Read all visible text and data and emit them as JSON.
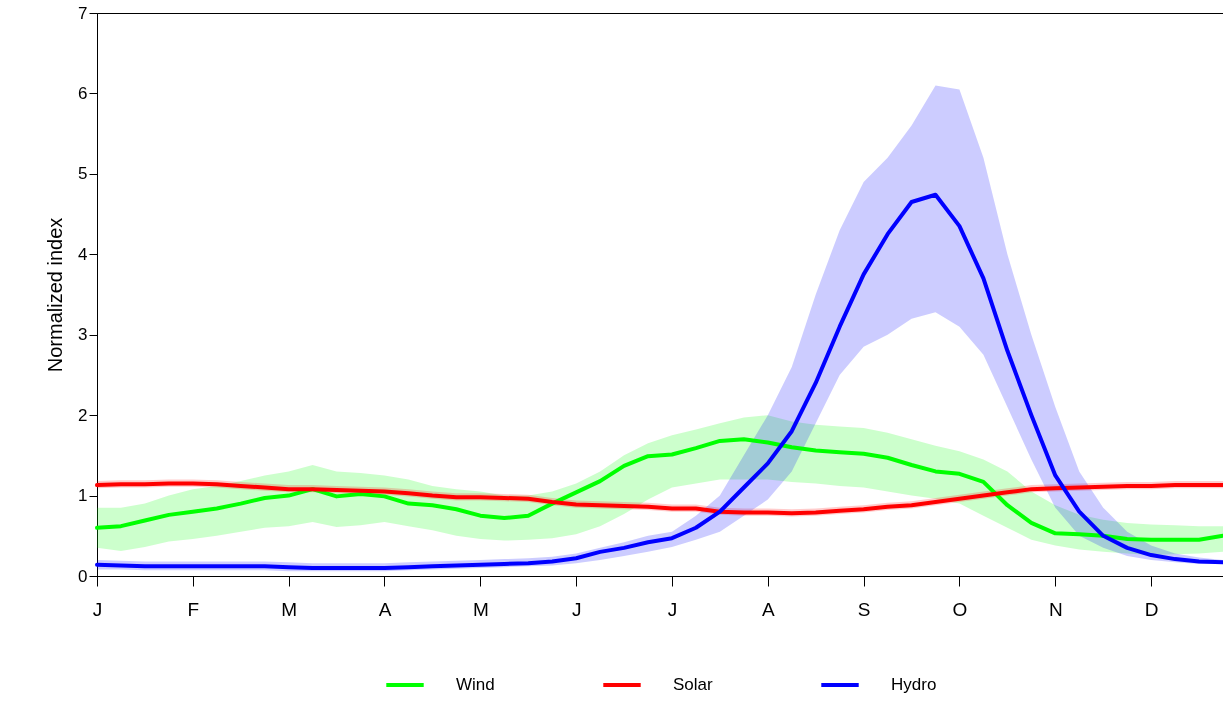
{
  "chart_data": {
    "type": "line",
    "ylabel": "Normalized index",
    "ylim": [
      0,
      7
    ],
    "categories": [
      "J",
      null,
      null,
      null,
      "F",
      null,
      null,
      null,
      "M",
      null,
      null,
      null,
      "A",
      null,
      null,
      null,
      "M",
      null,
      null,
      null,
      "J",
      null,
      null,
      null,
      "J",
      null,
      null,
      null,
      "A",
      null,
      null,
      null,
      "S",
      null,
      null,
      null,
      "O",
      null,
      null,
      null,
      "N",
      null,
      null,
      null,
      "D",
      null,
      null,
      null
    ],
    "yticks": [
      0,
      1,
      2,
      3,
      4,
      5,
      6,
      7
    ],
    "grid": false,
    "legend": "bottom",
    "line_style": "solid",
    "marker": "none",
    "series": [
      {
        "name": "Wind",
        "color": "#00ff00",
        "values": [
          0.6,
          0.62,
          0.69,
          0.76,
          0.8,
          0.84,
          0.9,
          0.97,
          1.0,
          1.08,
          0.99,
          1.02,
          0.99,
          0.9,
          0.88,
          0.83,
          0.75,
          0.72,
          0.75,
          0.9,
          1.04,
          1.18,
          1.37,
          1.49,
          1.51,
          1.59,
          1.68,
          1.7,
          1.66,
          1.6,
          1.56,
          1.54,
          1.52,
          1.47,
          1.38,
          1.3,
          1.27,
          1.17,
          0.88,
          0.66,
          0.53,
          0.52,
          0.5,
          0.46,
          0.45,
          0.45,
          0.45,
          0.5
        ],
        "lower": [
          0.35,
          0.31,
          0.36,
          0.43,
          0.46,
          0.5,
          0.55,
          0.6,
          0.62,
          0.67,
          0.61,
          0.63,
          0.67,
          0.62,
          0.57,
          0.5,
          0.46,
          0.44,
          0.45,
          0.47,
          0.52,
          0.62,
          0.77,
          0.95,
          1.1,
          1.15,
          1.2,
          1.2,
          1.2,
          1.17,
          1.15,
          1.12,
          1.1,
          1.05,
          1.0,
          0.96,
          0.9,
          0.75,
          0.6,
          0.45,
          0.38,
          0.33,
          0.3,
          0.28,
          0.26,
          0.27,
          0.28,
          0.3
        ],
        "upper": [
          0.85,
          0.85,
          0.9,
          1.0,
          1.08,
          1.12,
          1.18,
          1.25,
          1.3,
          1.38,
          1.3,
          1.28,
          1.25,
          1.2,
          1.12,
          1.08,
          1.05,
          1.0,
          1.0,
          1.05,
          1.15,
          1.3,
          1.5,
          1.65,
          1.75,
          1.82,
          1.9,
          1.97,
          2.0,
          1.92,
          1.88,
          1.86,
          1.84,
          1.78,
          1.7,
          1.62,
          1.55,
          1.45,
          1.3,
          1.05,
          0.88,
          0.76,
          0.7,
          0.66,
          0.64,
          0.63,
          0.62,
          0.62
        ]
      },
      {
        "name": "Solar",
        "color": "#ff0000",
        "values": [
          1.13,
          1.14,
          1.14,
          1.15,
          1.15,
          1.14,
          1.12,
          1.1,
          1.08,
          1.08,
          1.07,
          1.06,
          1.05,
          1.03,
          1.0,
          0.98,
          0.98,
          0.97,
          0.96,
          0.92,
          0.89,
          0.88,
          0.87,
          0.86,
          0.84,
          0.84,
          0.8,
          0.79,
          0.79,
          0.78,
          0.79,
          0.81,
          0.83,
          0.86,
          0.88,
          0.92,
          0.96,
          1.0,
          1.04,
          1.08,
          1.09,
          1.1,
          1.11,
          1.12,
          1.12,
          1.13,
          1.13,
          1.13
        ],
        "lower": [
          1.09,
          1.1,
          1.1,
          1.11,
          1.11,
          1.1,
          1.08,
          1.06,
          1.04,
          1.04,
          1.03,
          1.02,
          1.01,
          0.99,
          0.96,
          0.94,
          0.94,
          0.93,
          0.92,
          0.88,
          0.85,
          0.84,
          0.83,
          0.82,
          0.8,
          0.8,
          0.76,
          0.75,
          0.75,
          0.74,
          0.75,
          0.77,
          0.79,
          0.82,
          0.84,
          0.88,
          0.92,
          0.96,
          1.0,
          1.04,
          1.05,
          1.06,
          1.07,
          1.08,
          1.08,
          1.09,
          1.09,
          1.09
        ],
        "upper": [
          1.18,
          1.19,
          1.19,
          1.2,
          1.2,
          1.19,
          1.17,
          1.15,
          1.13,
          1.13,
          1.12,
          1.11,
          1.1,
          1.08,
          1.05,
          1.03,
          1.03,
          1.02,
          1.01,
          0.97,
          0.94,
          0.93,
          0.92,
          0.91,
          0.89,
          0.89,
          0.85,
          0.84,
          0.84,
          0.83,
          0.84,
          0.86,
          0.88,
          0.91,
          0.93,
          0.97,
          1.01,
          1.05,
          1.09,
          1.13,
          1.14,
          1.15,
          1.16,
          1.17,
          1.17,
          1.18,
          1.18,
          1.18
        ]
      },
      {
        "name": "Hydro",
        "color": "#0000ff",
        "values": [
          0.14,
          0.13,
          0.12,
          0.12,
          0.12,
          0.12,
          0.12,
          0.12,
          0.11,
          0.1,
          0.1,
          0.1,
          0.1,
          0.11,
          0.12,
          0.13,
          0.14,
          0.15,
          0.16,
          0.18,
          0.22,
          0.3,
          0.35,
          0.42,
          0.47,
          0.6,
          0.8,
          1.1,
          1.4,
          1.8,
          2.4,
          3.1,
          3.75,
          4.25,
          4.65,
          4.74,
          4.35,
          3.7,
          2.8,
          2.0,
          1.25,
          0.8,
          0.5,
          0.35,
          0.26,
          0.21,
          0.18,
          0.17
        ],
        "lower": [
          0.08,
          0.08,
          0.07,
          0.07,
          0.07,
          0.07,
          0.07,
          0.07,
          0.06,
          0.06,
          0.06,
          0.06,
          0.06,
          0.07,
          0.08,
          0.09,
          0.1,
          0.11,
          0.12,
          0.13,
          0.16,
          0.2,
          0.25,
          0.3,
          0.36,
          0.45,
          0.55,
          0.75,
          0.95,
          1.3,
          1.9,
          2.5,
          2.85,
          3.0,
          3.2,
          3.28,
          3.1,
          2.75,
          2.1,
          1.45,
          0.85,
          0.5,
          0.35,
          0.25,
          0.2,
          0.17,
          0.15,
          0.15
        ],
        "upper": [
          0.2,
          0.19,
          0.18,
          0.18,
          0.18,
          0.18,
          0.18,
          0.18,
          0.17,
          0.16,
          0.16,
          0.16,
          0.16,
          0.17,
          0.18,
          0.19,
          0.2,
          0.21,
          0.22,
          0.24,
          0.28,
          0.35,
          0.42,
          0.5,
          0.55,
          0.75,
          1.0,
          1.5,
          2.0,
          2.6,
          3.5,
          4.3,
          4.9,
          5.2,
          5.6,
          6.1,
          6.05,
          5.2,
          4.0,
          3.0,
          2.1,
          1.3,
          0.85,
          0.55,
          0.38,
          0.28,
          0.23,
          0.2
        ]
      }
    ]
  }
}
